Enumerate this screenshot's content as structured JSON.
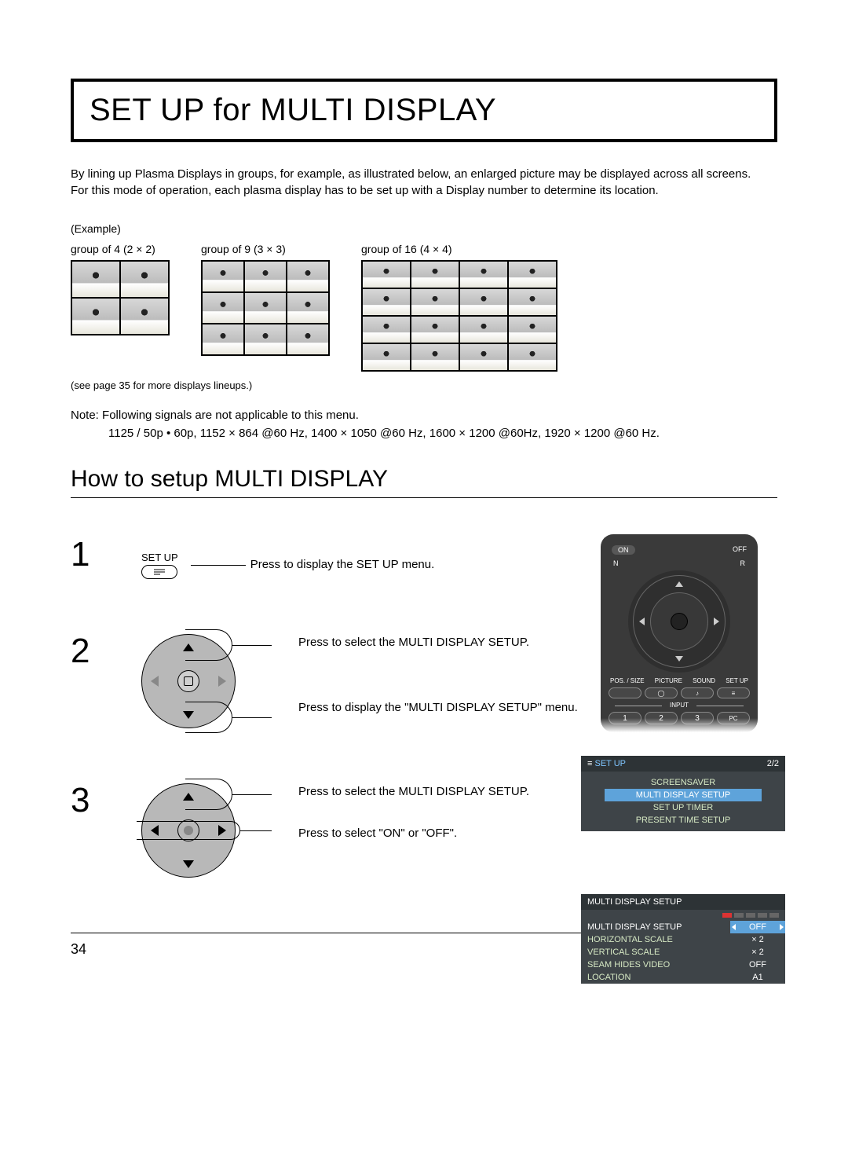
{
  "title": "SET UP for MULTI DISPLAY",
  "intro": "By lining up Plasma Displays in groups, for example, as illustrated below, an enlarged picture may be displayed across all screens.\nFor this mode of operation, each plasma display has to be set up with a Display number to determine its location.",
  "example_label": "(Example)",
  "examples": [
    {
      "caption": "group of 4 (2 × 2)",
      "cols": 2,
      "rows": 2
    },
    {
      "caption": "group of 9 (3 × 3)",
      "cols": 3,
      "rows": 3
    },
    {
      "caption": "group of 16 (4 × 4)",
      "cols": 4,
      "rows": 4
    }
  ],
  "see_page": "(see page 35 for more displays lineups.)",
  "note_label": "Note:",
  "note_line1": "Following signals are not applicable to this menu.",
  "note_line2": "1125 / 50p • 60p, 1152 × 864 @60 Hz, 1400 × 1050 @60 Hz, 1600 × 1200 @60Hz, 1920 × 1200 @60 Hz.",
  "section_heading": "How to setup MULTI DISPLAY",
  "steps": {
    "s1": {
      "num": "1",
      "btn_label": "SET UP",
      "text": "Press to display the SET UP menu."
    },
    "s2": {
      "num": "2",
      "text_a": "Press to select the MULTI DISPLAY SETUP.",
      "text_b": "Press to display the \"MULTI DISPLAY SETUP\" menu."
    },
    "s3": {
      "num": "3",
      "text_a": "Press to select the MULTI DISPLAY SETUP.",
      "text_b": "Press to select \"ON\" or \"OFF\"."
    }
  },
  "remote": {
    "on": "ON",
    "off": "OFF",
    "n": "N",
    "r": "R",
    "row_labels": [
      "POS. / SIZE",
      "PICTURE",
      "SOUND",
      "SET UP"
    ],
    "input": "INPUT",
    "numbers": [
      "1",
      "2",
      "3"
    ],
    "pc": "PC"
  },
  "osd_setup": {
    "title": "SET UP",
    "page": "2/2",
    "items": [
      "SCREENSAVER",
      "MULTI DISPLAY SETUP",
      "SET UP TIMER",
      "PRESENT TIME SETUP"
    ],
    "highlight_index": 1
  },
  "osd_mds": {
    "title": "MULTI DISPLAY SETUP",
    "rows": [
      {
        "label": "MULTI DISPLAY SETUP",
        "value": "OFF",
        "hl": true
      },
      {
        "label": "HORIZONTAL SCALE",
        "value": "× 2"
      },
      {
        "label": "VERTICAL SCALE",
        "value": "× 2"
      },
      {
        "label": "SEAM HIDES VIDEO",
        "value": "OFF"
      },
      {
        "label": "LOCATION",
        "value": "A1"
      }
    ]
  },
  "page_number": "34"
}
